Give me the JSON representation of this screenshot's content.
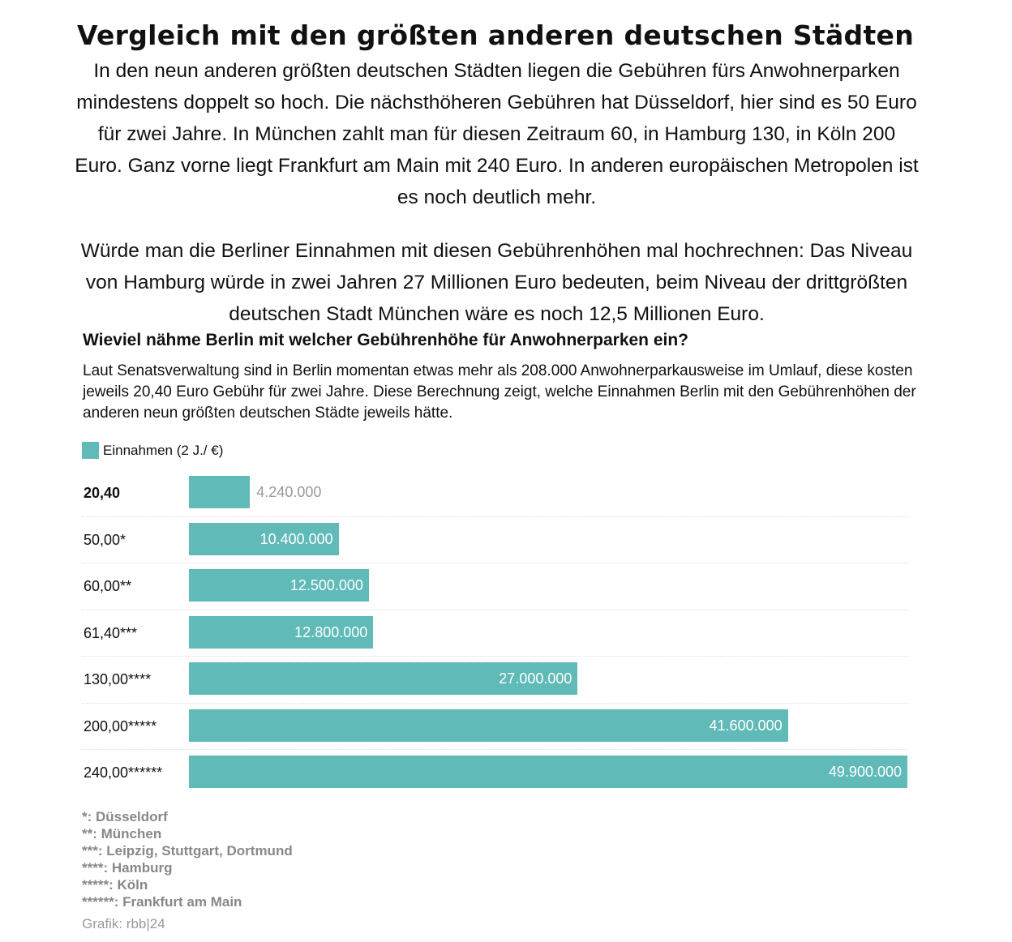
{
  "title": "Vergleich mit den größten anderen deutschen Städten",
  "paragraph1": "In den neun anderen größten deutschen Städten liegen die Gebühren fürs Anwohnerparken mindestens doppelt so hoch. Die nächsthöheren Gebühren hat Düsseldorf, hier sind es 50 Euro für zwei Jahre. In München zahlt man für diesen Zeitraum 60, in Hamburg 130, in Köln 200 Euro. Ganz vorne liegt Frankfurt am Main mit 240 Euro. In anderen europäischen Metropolen ist es noch deutlich mehr.",
  "paragraph2": "Würde man die Berliner Einnahmen mit diesen Gebührenhöhen mal hochrechnen: Das Niveau von Hamburg würde in zwei Jahren 27 Millionen Euro bedeuten, beim Niveau der drittgrößten deutschen Stadt München wäre es noch 12,5 Millionen Euro.",
  "chart_data": {
    "type": "bar",
    "title": "Wieviel nähme Berlin mit welcher Gebührenhöhe für Anwohnerparken ein?",
    "description": "Laut Senatsverwaltung sind in Berlin momentan etwas mehr als 208.000 Anwohnerparkausweise im Umlauf, diese kosten jeweils 20,40 Euro Gebühr für zwei Jahre. Diese Berechnung zeigt, welche Einnahmen Berlin mit den Gebührenhöhen der anderen neun größten deutschen Städte jeweils hätte.",
    "legend": "Einnahmen (2 J./ €)",
    "color": "#5fbab8",
    "categories": [
      "20,40",
      "50,00*",
      "60,00**",
      "61,40***",
      "130,00****",
      "200,00*****",
      "240,00******"
    ],
    "values": [
      4240000,
      10400000,
      12500000,
      12800000,
      27000000,
      41600000,
      49900000
    ],
    "value_labels": [
      "4.240.000",
      "10.400.000",
      "12.500.000",
      "12.800.000",
      "27.000.000",
      "41.600.000",
      "49.900.000"
    ],
    "notes": [
      "*: Düsseldorf",
      "**: München",
      "***: Leipzig, Stuttgart, Dortmund",
      "****: Hamburg",
      "*****: Köln",
      "******: Frankfurt am Main"
    ],
    "source": "Grafik: rbb|24"
  }
}
